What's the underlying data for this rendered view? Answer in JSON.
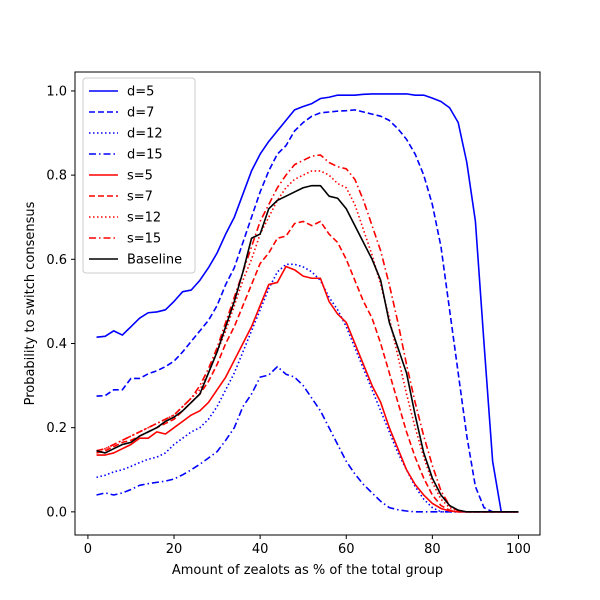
{
  "chart_data": {
    "type": "line",
    "title": "",
    "xlabel": "Amount of zealots as % of the total group",
    "ylabel": "Probability to switch consensus",
    "xlim": [
      -3,
      105
    ],
    "ylim": [
      -0.055,
      1.045
    ],
    "xticks": [
      0,
      20,
      40,
      60,
      80,
      100
    ],
    "yticks": [
      0.0,
      0.2,
      0.4,
      0.6,
      0.8,
      1.0
    ],
    "x": [
      2,
      4,
      6,
      8,
      10,
      12,
      14,
      16,
      18,
      20,
      22,
      24,
      26,
      28,
      30,
      32,
      34,
      36,
      38,
      40,
      42,
      44,
      46,
      48,
      50,
      52,
      54,
      56,
      58,
      60,
      62,
      64,
      66,
      68,
      70,
      72,
      74,
      76,
      78,
      80,
      82,
      84,
      86,
      88,
      90,
      92,
      94,
      96,
      98,
      100
    ],
    "grid": false,
    "legend_position": "top-left",
    "series": [
      {
        "name": "d=5",
        "color": "#0000ff",
        "dash": "solid",
        "values": [
          0.415,
          0.417,
          0.43,
          0.42,
          0.44,
          0.46,
          0.473,
          0.475,
          0.48,
          0.5,
          0.523,
          0.527,
          0.55,
          0.58,
          0.615,
          0.66,
          0.7,
          0.755,
          0.81,
          0.85,
          0.88,
          0.905,
          0.93,
          0.955,
          0.963,
          0.97,
          0.982,
          0.985,
          0.99,
          0.99,
          0.99,
          0.992,
          0.993,
          0.993,
          0.993,
          0.993,
          0.993,
          0.99,
          0.99,
          0.983,
          0.975,
          0.96,
          0.925,
          0.83,
          0.69,
          0.4,
          0.12,
          0.0,
          0.0,
          0.0
        ]
      },
      {
        "name": "d=7",
        "color": "#0000ff",
        "dash": "dashed",
        "values": [
          0.275,
          0.276,
          0.29,
          0.29,
          0.317,
          0.317,
          0.328,
          0.335,
          0.345,
          0.358,
          0.38,
          0.405,
          0.43,
          0.455,
          0.49,
          0.54,
          0.58,
          0.64,
          0.7,
          0.76,
          0.81,
          0.85,
          0.87,
          0.905,
          0.925,
          0.94,
          0.948,
          0.95,
          0.952,
          0.953,
          0.955,
          0.95,
          0.945,
          0.94,
          0.93,
          0.91,
          0.885,
          0.85,
          0.8,
          0.73,
          0.63,
          0.48,
          0.33,
          0.18,
          0.06,
          0.01,
          0.0,
          0.0,
          0.0,
          0.0
        ]
      },
      {
        "name": "d=12",
        "color": "#0000ff",
        "dash": "dotted",
        "values": [
          0.082,
          0.087,
          0.095,
          0.1,
          0.108,
          0.117,
          0.125,
          0.13,
          0.14,
          0.16,
          0.175,
          0.19,
          0.2,
          0.22,
          0.25,
          0.29,
          0.33,
          0.38,
          0.43,
          0.48,
          0.53,
          0.57,
          0.588,
          0.588,
          0.582,
          0.57,
          0.55,
          0.51,
          0.48,
          0.44,
          0.39,
          0.34,
          0.29,
          0.24,
          0.19,
          0.14,
          0.1,
          0.06,
          0.03,
          0.01,
          0.0,
          0.0,
          0.0,
          0.0,
          0.0,
          0.0,
          0.0,
          0.0,
          0.0,
          0.0
        ]
      },
      {
        "name": "d=15",
        "color": "#0000ff",
        "dash": "dashdot",
        "values": [
          0.04,
          0.045,
          0.04,
          0.045,
          0.053,
          0.063,
          0.067,
          0.07,
          0.073,
          0.078,
          0.088,
          0.1,
          0.113,
          0.128,
          0.143,
          0.17,
          0.2,
          0.25,
          0.28,
          0.32,
          0.325,
          0.345,
          0.327,
          0.32,
          0.3,
          0.27,
          0.24,
          0.2,
          0.16,
          0.12,
          0.09,
          0.065,
          0.045,
          0.025,
          0.01,
          0.005,
          0.002,
          0.0,
          0.0,
          0.0,
          0.0,
          0.0,
          0.0,
          0.0,
          0.0,
          0.0,
          0.0,
          0.0,
          0.0,
          0.0
        ]
      },
      {
        "name": "s=5",
        "color": "#ff0000",
        "dash": "solid",
        "values": [
          0.135,
          0.135,
          0.14,
          0.15,
          0.16,
          0.175,
          0.175,
          0.19,
          0.185,
          0.2,
          0.215,
          0.23,
          0.24,
          0.26,
          0.29,
          0.32,
          0.36,
          0.4,
          0.44,
          0.49,
          0.54,
          0.545,
          0.583,
          0.575,
          0.56,
          0.555,
          0.555,
          0.5,
          0.47,
          0.45,
          0.4,
          0.35,
          0.3,
          0.26,
          0.2,
          0.15,
          0.1,
          0.065,
          0.04,
          0.02,
          0.008,
          0.002,
          0.0,
          0.0,
          0.0,
          0.0,
          0.0,
          0.0,
          0.0,
          0.0
        ]
      },
      {
        "name": "s=7",
        "color": "#ff0000",
        "dash": "dashed",
        "values": [
          0.14,
          0.145,
          0.155,
          0.165,
          0.17,
          0.18,
          0.19,
          0.2,
          0.21,
          0.22,
          0.24,
          0.26,
          0.28,
          0.31,
          0.35,
          0.4,
          0.44,
          0.49,
          0.54,
          0.59,
          0.615,
          0.65,
          0.655,
          0.685,
          0.69,
          0.68,
          0.69,
          0.66,
          0.64,
          0.6,
          0.55,
          0.5,
          0.46,
          0.4,
          0.33,
          0.26,
          0.19,
          0.13,
          0.08,
          0.04,
          0.015,
          0.004,
          0.0,
          0.0,
          0.0,
          0.0,
          0.0,
          0.0,
          0.0,
          0.0
        ]
      },
      {
        "name": "s=12",
        "color": "#ff0000",
        "dash": "dotted",
        "values": [
          0.145,
          0.15,
          0.16,
          0.17,
          0.18,
          0.19,
          0.2,
          0.21,
          0.22,
          0.23,
          0.25,
          0.27,
          0.29,
          0.33,
          0.38,
          0.43,
          0.49,
          0.55,
          0.6,
          0.66,
          0.7,
          0.74,
          0.77,
          0.79,
          0.8,
          0.81,
          0.81,
          0.8,
          0.78,
          0.77,
          0.73,
          0.67,
          0.61,
          0.54,
          0.46,
          0.37,
          0.28,
          0.2,
          0.13,
          0.07,
          0.03,
          0.01,
          0.002,
          0.0,
          0.0,
          0.0,
          0.0,
          0.0,
          0.0,
          0.0
        ]
      },
      {
        "name": "s=15",
        "color": "#ff0000",
        "dash": "dashdot",
        "values": [
          0.145,
          0.15,
          0.16,
          0.17,
          0.18,
          0.19,
          0.2,
          0.21,
          0.22,
          0.23,
          0.25,
          0.27,
          0.3,
          0.34,
          0.39,
          0.45,
          0.51,
          0.57,
          0.63,
          0.69,
          0.73,
          0.77,
          0.8,
          0.825,
          0.835,
          0.845,
          0.848,
          0.83,
          0.82,
          0.815,
          0.79,
          0.74,
          0.68,
          0.62,
          0.54,
          0.45,
          0.35,
          0.26,
          0.18,
          0.11,
          0.05,
          0.015,
          0.003,
          0.0,
          0.0,
          0.0,
          0.0,
          0.0,
          0.0,
          0.0
        ]
      },
      {
        "name": "Baseline",
        "color": "#000000",
        "dash": "solid",
        "values": [
          0.145,
          0.14,
          0.15,
          0.16,
          0.165,
          0.18,
          0.19,
          0.2,
          0.215,
          0.225,
          0.24,
          0.26,
          0.28,
          0.33,
          0.38,
          0.44,
          0.5,
          0.57,
          0.65,
          0.66,
          0.72,
          0.74,
          0.75,
          0.76,
          0.77,
          0.775,
          0.775,
          0.75,
          0.745,
          0.72,
          0.68,
          0.64,
          0.6,
          0.55,
          0.45,
          0.39,
          0.33,
          0.23,
          0.14,
          0.08,
          0.04,
          0.015,
          0.004,
          0.0,
          0.0,
          0.0,
          0.0,
          0.0,
          0.0,
          0.0
        ]
      }
    ]
  }
}
